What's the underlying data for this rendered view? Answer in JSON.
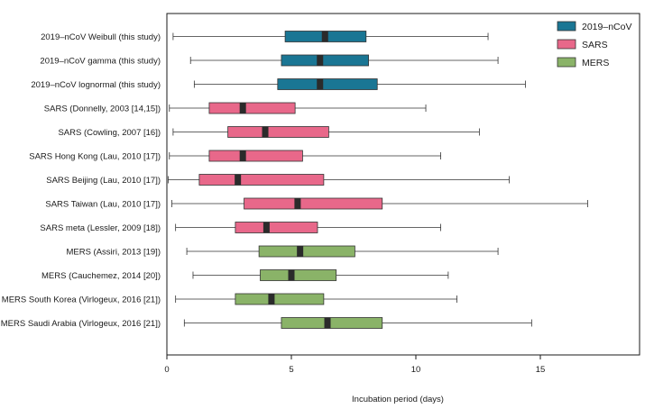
{
  "chart_data": {
    "type": "boxplot",
    "title": "",
    "xlabel": "Incubation period (days)",
    "ylabel": "",
    "xlim": [
      0,
      19
    ],
    "xticks": [
      0,
      5,
      10,
      15
    ],
    "grid": false,
    "legend_position": "top-right",
    "series": [
      {
        "name": "2019–nCoV",
        "color": "#1a7694"
      },
      {
        "name": "SARS",
        "color": "#e8688a"
      },
      {
        "name": "MERS",
        "color": "#8ab368"
      }
    ],
    "categories": [
      {
        "label": "2019–nCoV Weibull (this study)",
        "series": 0,
        "min": 0.25,
        "q1": 4.75,
        "median": 6.35,
        "q3": 8.0,
        "max": 12.9
      },
      {
        "label": "2019–nCoV gamma (this study)",
        "series": 0,
        "min": 0.95,
        "q1": 4.6,
        "median": 6.15,
        "q3": 8.1,
        "max": 13.3
      },
      {
        "label": "2019–nCoV lognormal (this study)",
        "series": 0,
        "min": 1.1,
        "q1": 4.45,
        "median": 6.15,
        "q3": 8.45,
        "max": 14.4
      },
      {
        "label": "SARS (Donnelly, 2003 [14,15])",
        "series": 1,
        "min": 0.1,
        "q1": 1.7,
        "median": 3.05,
        "q3": 5.15,
        "max": 10.4
      },
      {
        "label": "SARS (Cowling, 2007 [16])",
        "series": 1,
        "min": 0.25,
        "q1": 2.45,
        "median": 3.95,
        "q3": 6.5,
        "max": 12.55
      },
      {
        "label": "SARS Hong Kong (Lau, 2010 [17])",
        "series": 1,
        "min": 0.1,
        "q1": 1.7,
        "median": 3.05,
        "q3": 5.45,
        "max": 11.0
      },
      {
        "label": "SARS Beijing (Lau, 2010 [17])",
        "series": 1,
        "min": 0.05,
        "q1": 1.3,
        "median": 2.85,
        "q3": 6.3,
        "max": 13.75
      },
      {
        "label": "SARS Taiwan (Lau, 2010 [17])",
        "series": 1,
        "min": 0.2,
        "q1": 3.1,
        "median": 5.25,
        "q3": 8.65,
        "max": 16.9
      },
      {
        "label": "SARS meta (Lessler, 2009 [18])",
        "series": 1,
        "min": 0.35,
        "q1": 2.75,
        "median": 4.0,
        "q3": 6.05,
        "max": 11.0
      },
      {
        "label": "MERS (Assiri, 2013 [19])",
        "series": 2,
        "min": 0.8,
        "q1": 3.7,
        "median": 5.35,
        "q3": 7.55,
        "max": 13.3
      },
      {
        "label": "MERS (Cauchemez, 2014 [20])",
        "series": 2,
        "min": 1.05,
        "q1": 3.75,
        "median": 5.0,
        "q3": 6.8,
        "max": 11.3
      },
      {
        "label": "MERS South Korea (Virlogeux, 2016 [21])",
        "series": 2,
        "min": 0.35,
        "q1": 2.75,
        "median": 4.2,
        "q3": 6.3,
        "max": 11.65
      },
      {
        "label": "MERS Saudi Arabia (Virlogeux, 2016 [21])",
        "series": 2,
        "min": 0.7,
        "q1": 4.6,
        "median": 6.45,
        "q3": 8.65,
        "max": 14.65
      }
    ]
  }
}
